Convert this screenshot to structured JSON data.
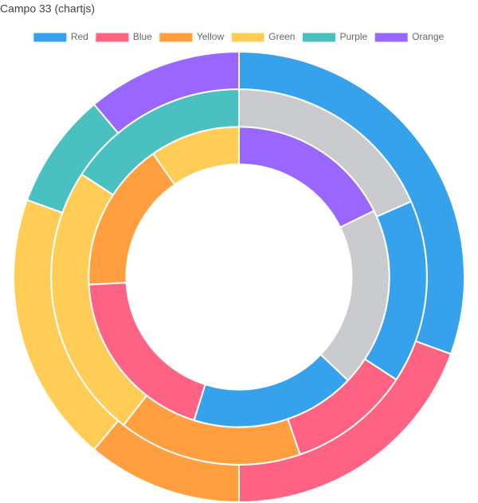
{
  "chart_data": {
    "type": "doughnut",
    "title": "Campo 33 (chartjs)",
    "categories": [
      "Red",
      "Blue",
      "Yellow",
      "Green",
      "Purple",
      "Orange"
    ],
    "datasets": [
      {
        "values": [
          11,
          7,
          4,
          7,
          3,
          4
        ],
        "colors": [
          "#36a2eb",
          "#ff6384",
          "#ff9f40",
          "#ffcd56",
          "#4bc0c0",
          "#9966ff"
        ]
      },
      {
        "values": [
          7,
          6,
          4,
          6,
          9,
          6
        ],
        "colors": [
          "#c9cbcf",
          "#36a2eb",
          "#ff6384",
          "#ff9f40",
          "#ffcd56",
          "#4bc0c0"
        ]
      },
      {
        "values": [
          11,
          12,
          11,
          12,
          10,
          6
        ],
        "colors": [
          "#9966ff",
          "#c9cbcf",
          "#36a2eb",
          "#ff6384",
          "#ff9f40",
          "#ffcd56"
        ]
      }
    ],
    "legend": "top"
  }
}
